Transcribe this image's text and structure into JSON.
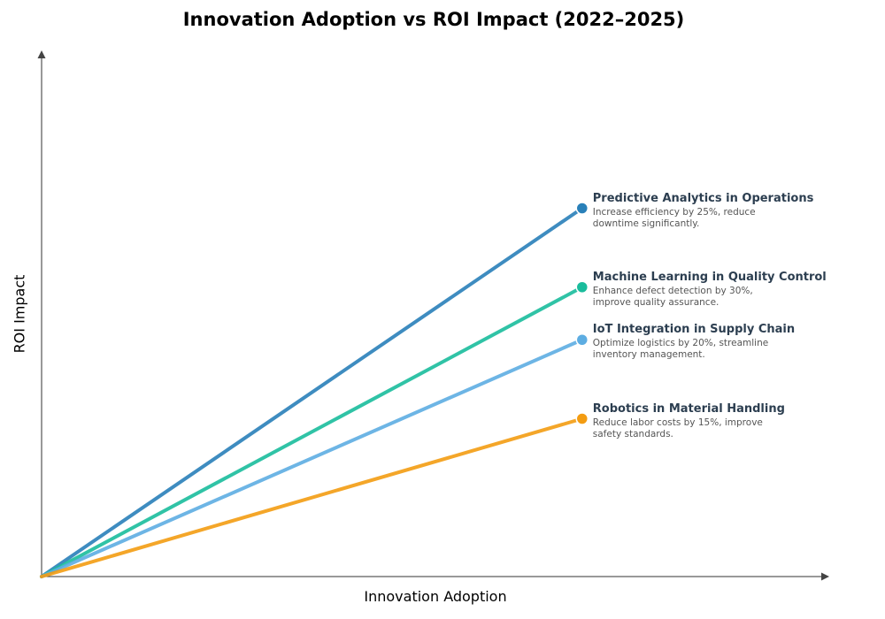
{
  "chart_data": {
    "type": "line",
    "title": "Innovation Adoption vs ROI Impact (2022–2025)",
    "xlabel": "Innovation Adoption",
    "ylabel": "ROI Impact",
    "xlim": [
      0,
      1.02
    ],
    "ylim": [
      0,
      1.0
    ],
    "grid": false,
    "ticks": false,
    "series": [
      {
        "name": "Predictive Analytics in Operations",
        "description": "Increase efficiency by 25%, reduce downtime significantly.",
        "color": "#2980b9",
        "x": [
          0,
          0.7
        ],
        "y": [
          0,
          0.7
        ]
      },
      {
        "name": "Machine Learning in Quality Control",
        "description": "Enhance defect detection by 30%, improve quality assurance.",
        "color": "#1abc9c",
        "x": [
          0,
          0.7
        ],
        "y": [
          0,
          0.55
        ]
      },
      {
        "name": "IoT Integration in Supply Chain",
        "description": "Optimize logistics by 20%, streamline inventory management.",
        "color": "#5dade2",
        "x": [
          0,
          0.7
        ],
        "y": [
          0,
          0.45
        ]
      },
      {
        "name": "Robotics in Material Handling",
        "description": "Reduce labor costs by 15%, improve safety standards.",
        "color": "#f39c12",
        "x": [
          0,
          0.7
        ],
        "y": [
          0,
          0.3
        ]
      }
    ]
  }
}
